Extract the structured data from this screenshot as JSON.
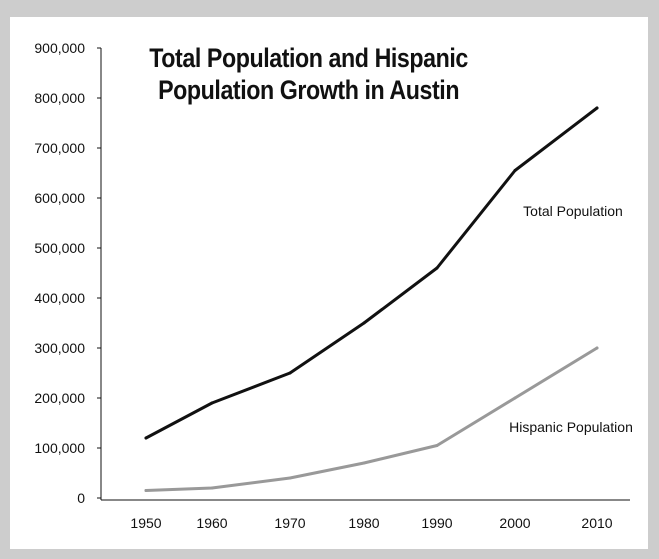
{
  "chart_data": {
    "type": "line",
    "title": "Total Population and Hispanic Population Growth in Austin",
    "xlabel": "",
    "ylabel": "",
    "x": [
      "1950",
      "1960",
      "1970",
      "1980",
      "1990",
      "2000",
      "2010"
    ],
    "ylim": [
      0,
      900000
    ],
    "yticks": [
      "0",
      "100,000",
      "200,000",
      "300,000",
      "400,000",
      "500,000",
      "600,000",
      "700,000",
      "800,000",
      "900,000"
    ],
    "grid": false,
    "legend": "inline-labels",
    "series": [
      {
        "name": "Total Population",
        "color": "#111111",
        "values": [
          120000,
          190000,
          250000,
          350000,
          460000,
          655000,
          780000
        ]
      },
      {
        "name": "Hispanic Population",
        "color": "#999999",
        "values": [
          15000,
          20000,
          40000,
          70000,
          105000,
          200000,
          300000
        ]
      }
    ]
  }
}
